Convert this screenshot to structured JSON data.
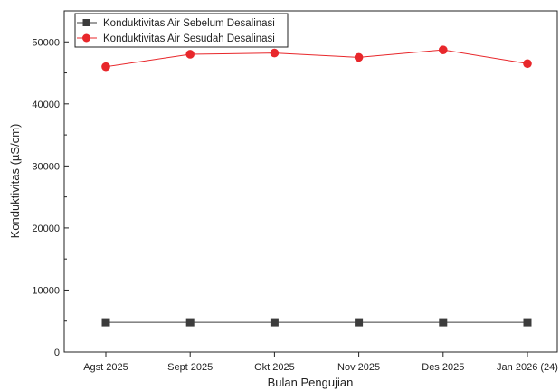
{
  "chart_data": {
    "type": "line",
    "categories": [
      "Agst 2025",
      "Sept 2025",
      "Okt 2025",
      "Nov 2025",
      "Des 2025",
      "Jan 2026 (24)"
    ],
    "series": [
      {
        "name": "Konduktivitas Air Sebelum Desalinasi",
        "values": [
          4800,
          4800,
          4800,
          4800,
          4800,
          4800
        ],
        "color": "#3c3c3c",
        "marker": "square"
      },
      {
        "name": "Konduktivitas Air Sesudah Desalinasi",
        "values": [
          46000,
          48000,
          48200,
          47500,
          48700,
          46500
        ],
        "color": "#e8272b",
        "marker": "circle"
      }
    ],
    "xlabel": "Bulan Pengujian",
    "ylabel": "Konduktivitas (µS/cm)",
    "ylim": [
      0,
      55000
    ],
    "yticks": [
      "0",
      "10000",
      "20000",
      "30000",
      "40000",
      "50000"
    ],
    "grid": false,
    "legend": "top-left"
  }
}
